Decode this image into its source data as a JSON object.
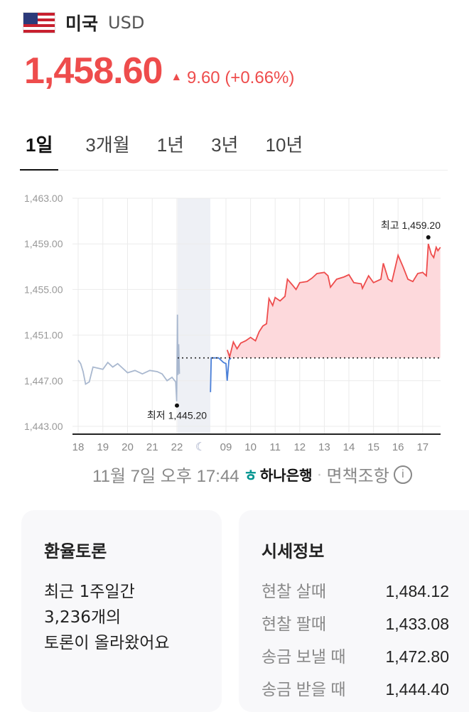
{
  "header": {
    "country": "미국",
    "currency": "USD",
    "flag_icon": "us-flag-icon"
  },
  "quote": {
    "price": "1,458.60",
    "change": "9.60 (+0.66%)",
    "direction": "up",
    "color": "#ee4c4c"
  },
  "tabs": [
    {
      "label": "1일",
      "active": true
    },
    {
      "label": "3개월"
    },
    {
      "label": "1년"
    },
    {
      "label": "3년"
    },
    {
      "label": "10년"
    }
  ],
  "chart_data": {
    "type": "line",
    "y_ticks": [
      "1,463.00",
      "1,459.00",
      "1,455.00",
      "1,451.00",
      "1,447.00",
      "1,443.00"
    ],
    "ylim": [
      1443,
      1463
    ],
    "x_ticks": [
      "18",
      "19",
      "20",
      "21",
      "22",
      "09",
      "10",
      "11",
      "12",
      "13",
      "14",
      "15",
      "16",
      "17"
    ],
    "night_icon": "moon-icon",
    "baseline": 1449.0,
    "max_label": "최고 1,459.20",
    "max": {
      "x": 17.23,
      "y": 1459.2
    },
    "min_label": "최저 1,445.20",
    "min": {
      "x": 22.0,
      "y": 1445.2
    },
    "grid": true,
    "series": [
      {
        "segment": "overnight",
        "color": "#a9b8cf",
        "points": [
          [
            18,
            1448.8
          ],
          [
            18.1,
            1448.5
          ],
          [
            18.2,
            1447.8
          ],
          [
            18.3,
            1446.7
          ],
          [
            18.45,
            1446.9
          ],
          [
            18.6,
            1448.2
          ],
          [
            18.8,
            1448.1
          ],
          [
            19.0,
            1448.0
          ],
          [
            19.2,
            1448.6
          ],
          [
            19.4,
            1448.2
          ],
          [
            19.6,
            1448.5
          ],
          [
            19.8,
            1448.1
          ],
          [
            20.0,
            1447.7
          ],
          [
            20.3,
            1447.9
          ],
          [
            20.6,
            1447.6
          ],
          [
            20.9,
            1447.9
          ],
          [
            21.2,
            1447.8
          ],
          [
            21.4,
            1447.6
          ],
          [
            21.6,
            1447.0
          ],
          [
            21.8,
            1447.3
          ],
          [
            21.95,
            1446.9
          ],
          [
            21.99,
            1445.2
          ],
          [
            22.02,
            1452.8
          ],
          [
            22.04,
            1447.5
          ],
          [
            22.07,
            1450.2
          ],
          [
            22.1,
            1447.6
          ]
        ]
      },
      {
        "segment": "premarket",
        "color": "#4a7fd8",
        "points": [
          [
            8.37,
            1446.0
          ],
          [
            8.4,
            1449.0
          ],
          [
            8.7,
            1449.0
          ],
          [
            8.9,
            1448.6
          ],
          [
            9.0,
            1448.5
          ],
          [
            9.05,
            1447.0
          ],
          [
            9.12,
            1448.8
          ],
          [
            9.2,
            1449.0
          ]
        ]
      },
      {
        "segment": "session",
        "color": "#ee4c4c",
        "fill": "#fdd9dc",
        "points": [
          [
            9.05,
            1449.7
          ],
          [
            9.15,
            1449.1
          ],
          [
            9.3,
            1450.4
          ],
          [
            9.45,
            1449.8
          ],
          [
            9.6,
            1450.3
          ],
          [
            9.8,
            1450.5
          ],
          [
            10.0,
            1450.8
          ],
          [
            10.2,
            1450.5
          ],
          [
            10.35,
            1451.3
          ],
          [
            10.5,
            1451.8
          ],
          [
            10.65,
            1452.0
          ],
          [
            10.75,
            1454.2
          ],
          [
            10.9,
            1453.6
          ],
          [
            11.0,
            1454.3
          ],
          [
            11.2,
            1454.0
          ],
          [
            11.4,
            1454.4
          ],
          [
            11.5,
            1455.9
          ],
          [
            11.7,
            1455.4
          ],
          [
            11.85,
            1455.0
          ],
          [
            12.0,
            1455.6
          ],
          [
            12.3,
            1455.7
          ],
          [
            12.5,
            1456.0
          ],
          [
            12.7,
            1456.4
          ],
          [
            13.0,
            1456.5
          ],
          [
            13.15,
            1456.2
          ],
          [
            13.25,
            1455.2
          ],
          [
            13.5,
            1455.9
          ],
          [
            13.8,
            1456.1
          ],
          [
            14.0,
            1456.3
          ],
          [
            14.2,
            1455.6
          ],
          [
            14.5,
            1455.5
          ],
          [
            14.55,
            1455.1
          ],
          [
            14.8,
            1456.2
          ],
          [
            15.0,
            1455.6
          ],
          [
            15.3,
            1455.9
          ],
          [
            15.4,
            1457.3
          ],
          [
            15.6,
            1455.9
          ],
          [
            15.75,
            1455.7
          ],
          [
            16.0,
            1458.0
          ],
          [
            16.2,
            1457.0
          ],
          [
            16.4,
            1455.9
          ],
          [
            16.6,
            1455.7
          ],
          [
            16.8,
            1456.4
          ],
          [
            17.0,
            1456.5
          ],
          [
            17.15,
            1456.2
          ],
          [
            17.23,
            1459.0
          ],
          [
            17.35,
            1458.1
          ],
          [
            17.45,
            1457.8
          ],
          [
            17.55,
            1458.7
          ],
          [
            17.62,
            1458.4
          ],
          [
            17.72,
            1458.7
          ]
        ]
      }
    ]
  },
  "source": {
    "timestamp": "11월 7일 오후 17:44",
    "bank": "하나은행",
    "separator": "·",
    "disclaimer": "면책조항",
    "info_icon": "info-icon"
  },
  "discussion": {
    "title": "환율토론",
    "lines": [
      "최근 1주일간",
      "3,236개의",
      "토론이 올라왔어요"
    ]
  },
  "market_info": {
    "title": "시세정보",
    "rows": [
      {
        "label": "현찰 살때",
        "value": "1,484.12"
      },
      {
        "label": "현찰 팔때",
        "value": "1,433.08"
      },
      {
        "label": "송금 보낼 때",
        "value": "1,472.80"
      },
      {
        "label": "송금 받을 때",
        "value": "1,444.40"
      }
    ]
  }
}
